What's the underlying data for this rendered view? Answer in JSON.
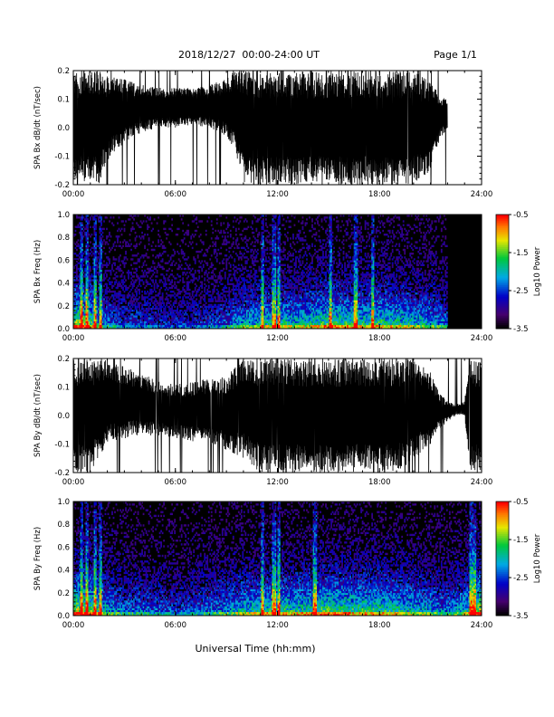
{
  "header": {
    "date_range": "2018/12/27  00:00-24:00 UT",
    "page": "Page 1/1"
  },
  "footer": {
    "xlabel": "Universal Time (hh:mm)"
  },
  "chart_data": [
    {
      "type": "line",
      "title": "",
      "ylabel": "SPA Bx dB/dt (nT/sec)",
      "xlabel": "",
      "x_ticks": [
        "00:00",
        "06:00",
        "12:00",
        "18:00",
        "24:00"
      ],
      "y_ticks": [
        "-0.2",
        "-0.1",
        "0.0",
        "0.1",
        "0.2"
      ],
      "xlim": [
        0,
        24
      ],
      "ylim": [
        -0.2,
        0.2
      ],
      "data_end_hour": 22.0,
      "series": [
        {
          "envelope_hours": [
            0,
            0.5,
            1,
            1.5,
            2,
            3,
            4,
            5,
            6,
            7,
            8,
            9,
            9.5,
            10,
            11,
            12,
            13,
            14,
            15,
            16,
            17,
            18,
            19,
            20,
            21,
            21.5,
            22
          ],
          "upper": [
            0.2,
            0.2,
            0.2,
            0.2,
            0.18,
            0.17,
            0.15,
            0.14,
            0.14,
            0.14,
            0.15,
            0.17,
            0.2,
            0.2,
            0.2,
            0.2,
            0.2,
            0.2,
            0.2,
            0.2,
            0.2,
            0.2,
            0.2,
            0.2,
            0.16,
            0.12,
            0.1
          ],
          "lower": [
            -0.2,
            -0.2,
            -0.2,
            -0.2,
            -0.12,
            -0.05,
            -0.02,
            0.0,
            0.0,
            0.01,
            0.0,
            -0.03,
            -0.08,
            -0.2,
            -0.2,
            -0.2,
            -0.2,
            -0.2,
            -0.2,
            -0.2,
            -0.2,
            -0.2,
            -0.2,
            -0.2,
            -0.15,
            -0.05,
            0.0
          ]
        }
      ],
      "grid": false
    },
    {
      "type": "heatmap",
      "title": "",
      "ylabel": "SPA Bx Freq (Hz)",
      "x_ticks": [
        "00:00",
        "06:00",
        "12:00",
        "18:00",
        "24:00"
      ],
      "y_ticks": [
        "0.0",
        "0.2",
        "0.4",
        "0.6",
        "0.8",
        "1.0"
      ],
      "xlim": [
        0,
        24
      ],
      "ylim": [
        0,
        1
      ],
      "data_end_hour": 22.0,
      "colorbar": {
        "label": "Log10 Power",
        "ticks": [
          "-0.5",
          "-1.5",
          "-2.5",
          "-3.5"
        ],
        "range": [
          -3.5,
          -0.5
        ]
      },
      "activity_hours": [
        0,
        1,
        2,
        3,
        4,
        5,
        6,
        7,
        8,
        9,
        10,
        11,
        12,
        13,
        14,
        15,
        16,
        17,
        18,
        19,
        20,
        21,
        22
      ],
      "activity_level": [
        0.85,
        0.75,
        0.45,
        0.35,
        0.35,
        0.3,
        0.3,
        0.3,
        0.35,
        0.4,
        0.55,
        0.6,
        0.65,
        0.6,
        0.65,
        0.75,
        0.7,
        0.65,
        0.7,
        0.65,
        0.6,
        0.55,
        0.45
      ],
      "spike_hours": [
        0.5,
        0.8,
        1.3,
        1.6,
        11.1,
        11.8,
        12.1,
        15.1,
        16.6,
        17.6
      ],
      "grid": false
    },
    {
      "type": "line",
      "title": "",
      "ylabel": "SPA By dB/dt (nT/sec)",
      "x_ticks": [
        "00:00",
        "06:00",
        "12:00",
        "18:00",
        "24:00"
      ],
      "y_ticks": [
        "-0.2",
        "-0.1",
        "0.0",
        "0.1",
        "0.2"
      ],
      "xlim": [
        0,
        24
      ],
      "ylim": [
        -0.2,
        0.2
      ],
      "data_end_hour": 24.0,
      "series": [
        {
          "envelope_hours": [
            0,
            0.5,
            1,
            1.5,
            2,
            3,
            4,
            5,
            6,
            7,
            8,
            9,
            10,
            11,
            12,
            13,
            14,
            15,
            16,
            17,
            18,
            19,
            20,
            21,
            21.5,
            22,
            22.5,
            23,
            23.3,
            24
          ],
          "upper": [
            0.2,
            0.2,
            0.2,
            0.2,
            0.2,
            0.17,
            0.15,
            0.12,
            0.11,
            0.12,
            0.13,
            0.14,
            0.2,
            0.2,
            0.2,
            0.2,
            0.2,
            0.2,
            0.2,
            0.2,
            0.2,
            0.2,
            0.2,
            0.15,
            0.08,
            0.05,
            0.04,
            0.05,
            0.2,
            0.2
          ],
          "lower": [
            -0.2,
            -0.2,
            -0.2,
            -0.15,
            -0.1,
            -0.08,
            -0.07,
            -0.07,
            -0.08,
            -0.09,
            -0.1,
            -0.12,
            -0.15,
            -0.2,
            -0.2,
            -0.2,
            -0.2,
            -0.2,
            -0.2,
            -0.2,
            -0.2,
            -0.2,
            -0.16,
            -0.1,
            -0.05,
            -0.02,
            0.0,
            0.0,
            -0.2,
            -0.2
          ]
        }
      ],
      "grid": false
    },
    {
      "type": "heatmap",
      "title": "",
      "ylabel": "SPA By Freq (Hz)",
      "x_ticks": [
        "00:00",
        "06:00",
        "12:00",
        "18:00",
        "24:00"
      ],
      "y_ticks": [
        "0.0",
        "0.2",
        "0.4",
        "0.6",
        "0.8",
        "1.0"
      ],
      "xlim": [
        0,
        24
      ],
      "ylim": [
        0,
        1
      ],
      "data_end_hour": 24.0,
      "colorbar": {
        "label": "Log10 Power",
        "ticks": [
          "-0.5",
          "-1.5",
          "-2.5",
          "-3.5"
        ],
        "range": [
          -3.5,
          -0.5
        ]
      },
      "activity_hours": [
        0,
        1,
        2,
        3,
        4,
        5,
        6,
        7,
        8,
        9,
        10,
        11,
        12,
        13,
        14,
        15,
        16,
        17,
        18,
        19,
        20,
        21,
        22,
        23,
        24
      ],
      "activity_level": [
        0.9,
        0.8,
        0.55,
        0.45,
        0.45,
        0.4,
        0.35,
        0.4,
        0.45,
        0.5,
        0.6,
        0.65,
        0.7,
        0.65,
        0.7,
        0.75,
        0.7,
        0.7,
        0.7,
        0.65,
        0.6,
        0.55,
        0.45,
        0.6,
        0.9
      ],
      "spike_hours": [
        0.5,
        0.8,
        1.3,
        1.6,
        11.1,
        11.8,
        12.1,
        14.2,
        23.4,
        23.6
      ],
      "grid": false
    }
  ]
}
